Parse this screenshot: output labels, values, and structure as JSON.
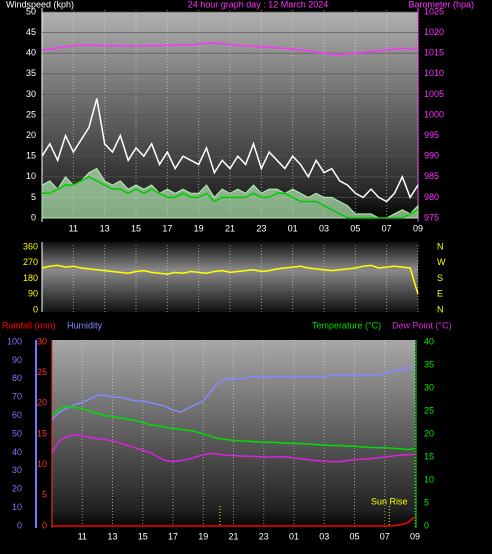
{
  "chart_data": [
    {
      "type": "line",
      "title": "24 hour graph day : 12 March 2024",
      "ylabel": "Windspeed (kph)",
      "y2label": "Barometer (hpa)",
      "x": [
        0,
        0.5,
        1,
        1.5,
        2,
        2.5,
        3,
        3.5,
        4,
        4.5,
        5,
        5.5,
        6,
        6.5,
        7,
        7.5,
        8,
        8.5,
        9,
        9.5,
        10,
        10.5,
        11,
        11.5,
        12,
        12.5,
        13,
        13.5,
        14,
        14.5,
        15,
        15.5,
        16,
        16.5,
        17,
        17.5,
        18,
        18.5,
        19,
        19.5,
        20,
        20.5,
        21,
        21.5,
        22,
        22.5,
        23,
        23.5,
        24
      ],
      "xlim": [
        0,
        24
      ],
      "xticks": [
        {
          "value": 2,
          "label": "11"
        },
        {
          "value": 4,
          "label": "13"
        },
        {
          "value": 6,
          "label": "15"
        },
        {
          "value": 8,
          "label": "17"
        },
        {
          "value": 10,
          "label": "19"
        },
        {
          "value": 12,
          "label": "21"
        },
        {
          "value": 14,
          "label": "23"
        },
        {
          "value": 16,
          "label": "01"
        },
        {
          "value": 18,
          "label": "03"
        },
        {
          "value": 20,
          "label": "05"
        },
        {
          "value": 22,
          "label": "07"
        },
        {
          "value": 24,
          "label": "09"
        }
      ],
      "ylim": [
        0,
        50
      ],
      "yticks": [
        0,
        5,
        10,
        15,
        20,
        25,
        30,
        35,
        40,
        45,
        50
      ],
      "y2lim": [
        975,
        1025
      ],
      "y2ticks": [
        975,
        980,
        985,
        990,
        995,
        1000,
        1005,
        1010,
        1015,
        1020,
        1025
      ],
      "axis_colors": {
        "y": "#ffffff",
        "y2": "#ff33ff"
      },
      "grid": "xy",
      "series": [
        {
          "color": "#ffffff",
          "style": "line",
          "values": [
            15,
            18,
            14,
            20,
            16,
            19,
            22,
            29,
            18,
            16,
            20,
            14,
            17,
            15,
            18,
            13,
            16,
            12,
            15,
            14,
            13,
            17,
            11,
            14,
            12,
            15,
            13,
            18,
            12,
            16,
            14,
            12,
            15,
            13,
            10,
            14,
            11,
            12,
            9,
            8,
            6,
            5,
            7,
            5,
            4,
            6,
            10,
            5,
            8
          ]
        },
        {
          "color": "#b8f0b8",
          "style": "area",
          "values": [
            8,
            9,
            7,
            10,
            8,
            9,
            11,
            12,
            9,
            8,
            9,
            7,
            8,
            7,
            8,
            6,
            7,
            6,
            7,
            6,
            6,
            8,
            5,
            7,
            6,
            7,
            6,
            8,
            6,
            7,
            7,
            6,
            7,
            6,
            5,
            6,
            5,
            5,
            4,
            3,
            1,
            1,
            1,
            0,
            0,
            1,
            2,
            1,
            3
          ]
        },
        {
          "color": "#00cc00",
          "style": "line",
          "values": [
            6,
            6,
            7,
            8,
            8,
            9,
            10,
            9,
            8,
            7,
            7,
            6,
            7,
            6,
            7,
            6,
            5,
            5,
            6,
            5,
            5,
            6,
            4,
            5,
            5,
            5,
            5,
            6,
            5,
            5,
            6,
            6,
            5,
            4,
            4,
            4,
            3,
            2,
            1,
            0,
            0,
            0,
            0,
            0,
            0,
            0,
            0,
            1,
            2
          ]
        },
        {
          "color": "#ff33ff",
          "style": "line",
          "axis": "y2",
          "values": [
            1015.8,
            1016.0,
            1016.3,
            1016.6,
            1016.8,
            1017.0,
            1017.0,
            1016.9,
            1016.8,
            1016.9,
            1016.8,
            1016.7,
            1016.8,
            1016.8,
            1016.9,
            1016.8,
            1016.9,
            1017.0,
            1017.1,
            1017.0,
            1017.2,
            1017.4,
            1017.5,
            1017.3,
            1017.1,
            1016.9,
            1016.8,
            1016.7,
            1016.5,
            1016.4,
            1016.3,
            1016.2,
            1016.0,
            1015.8,
            1015.6,
            1015.3,
            1015.0,
            1014.8,
            1014.7,
            1014.9,
            1015.0,
            1015.2,
            1015.4,
            1015.6,
            1015.8,
            1016.0,
            1016.2,
            1016.0,
            1016.3
          ]
        }
      ]
    },
    {
      "type": "line",
      "x": [
        0,
        0.5,
        1,
        1.5,
        2,
        2.5,
        3,
        3.5,
        4,
        4.5,
        5,
        5.5,
        6,
        6.5,
        7,
        7.5,
        8,
        8.5,
        9,
        9.5,
        10,
        10.5,
        11,
        11.5,
        12,
        12.5,
        13,
        13.5,
        14,
        14.5,
        15,
        15.5,
        16,
        16.5,
        17,
        17.5,
        18,
        18.5,
        19,
        19.5,
        20,
        20.5,
        21,
        21.5,
        22,
        22.5,
        23,
        23.5,
        24
      ],
      "xlim": [
        0,
        24
      ],
      "xticks": [
        2,
        4,
        6,
        8,
        10,
        12,
        14,
        16,
        18,
        20,
        22,
        24
      ],
      "ylim": [
        0,
        360
      ],
      "yticks": [
        0,
        90,
        180,
        270,
        360
      ],
      "y2lim": [
        0,
        360
      ],
      "y2ticks": [
        {
          "value": 0,
          "label": "N"
        },
        {
          "value": 90,
          "label": "E"
        },
        {
          "value": 180,
          "label": "S"
        },
        {
          "value": 270,
          "label": "W"
        },
        {
          "value": 360,
          "label": "N"
        }
      ],
      "axis_colors": {
        "y": "#ffff00",
        "y2": "#ffff00"
      },
      "grid": "x",
      "series": [
        {
          "color": "#ffff00",
          "style": "line",
          "values": [
            240,
            250,
            255,
            245,
            250,
            240,
            235,
            230,
            225,
            220,
            215,
            210,
            220,
            225,
            215,
            210,
            205,
            215,
            210,
            220,
            215,
            210,
            220,
            225,
            215,
            220,
            225,
            230,
            220,
            225,
            235,
            240,
            245,
            250,
            240,
            235,
            230,
            225,
            230,
            235,
            240,
            250,
            255,
            240,
            245,
            250,
            245,
            240,
            90
          ]
        }
      ]
    },
    {
      "type": "line",
      "x": [
        0,
        0.5,
        1,
        1.5,
        2,
        2.5,
        3,
        3.5,
        4,
        4.5,
        5,
        5.5,
        6,
        6.5,
        7,
        7.5,
        8,
        8.5,
        9,
        9.5,
        10,
        10.5,
        11,
        11.5,
        12,
        12.5,
        13,
        13.5,
        14,
        14.5,
        15,
        15.5,
        16,
        16.5,
        17,
        17.5,
        18,
        18.5,
        19,
        19.5,
        20,
        20.5,
        21,
        21.5,
        22,
        22.5,
        23,
        23.5,
        24
      ],
      "xlim": [
        0,
        24
      ],
      "xticks": [
        {
          "value": 2,
          "label": "11"
        },
        {
          "value": 4,
          "label": "13"
        },
        {
          "value": 6,
          "label": "15"
        },
        {
          "value": 8,
          "label": "17"
        },
        {
          "value": 10,
          "label": "19"
        },
        {
          "value": 12,
          "label": "21"
        },
        {
          "value": 14,
          "label": "23"
        },
        {
          "value": 16,
          "label": "01"
        },
        {
          "value": 18,
          "label": "03"
        },
        {
          "value": 20,
          "label": "05"
        },
        {
          "value": 22,
          "label": "07"
        },
        {
          "value": 24,
          "label": "09"
        }
      ],
      "ylim": [
        0,
        30
      ],
      "yticks": [
        0,
        5,
        10,
        15,
        20,
        25,
        30
      ],
      "y3lim": [
        0,
        100
      ],
      "y3ticks": [
        0,
        10,
        20,
        30,
        40,
        50,
        60,
        70,
        80,
        90,
        100
      ],
      "y2lim": [
        0,
        40
      ],
      "y2ticks": [
        0,
        5,
        10,
        15,
        20,
        25,
        30,
        35,
        40
      ],
      "axis_colors": {
        "y": "#ff3333",
        "y2": "#00ee00",
        "y3": "#7777ff"
      },
      "grid": "x",
      "vlines": [
        {
          "x": 11.1
        },
        {
          "x": 22.3,
          "text": "Sun Rise"
        }
      ],
      "series": [
        {
          "name": "Rainfall (mm)",
          "color": "#ff0000",
          "style": "line",
          "axis": "y",
          "values": [
            0,
            0,
            0,
            0,
            0,
            0,
            0,
            0,
            0,
            0,
            0,
            0,
            0,
            0,
            0,
            0,
            0,
            0,
            0,
            0,
            0,
            0,
            0,
            0,
            0,
            0,
            0,
            0,
            0,
            0,
            0,
            0,
            0,
            0,
            0,
            0,
            0,
            0,
            0,
            0,
            0,
            0,
            0,
            0,
            0,
            0,
            0.2,
            0.5,
            1.5
          ]
        },
        {
          "name": "Humidity",
          "color": "#8888ff",
          "style": "line",
          "axis": "y3",
          "values": [
            58,
            62,
            64,
            66,
            67,
            69,
            71,
            71,
            70,
            70,
            69,
            68,
            68,
            67,
            66,
            65,
            63,
            62,
            64,
            66,
            68,
            73,
            78,
            80,
            80,
            80,
            81,
            81,
            81,
            81,
            81,
            81,
            81,
            81,
            81,
            81,
            81,
            82,
            82,
            82,
            82,
            82,
            82,
            82,
            83,
            84,
            85,
            86,
            86
          ]
        },
        {
          "name": "Temperature (°C)",
          "color": "#00dd00",
          "style": "line",
          "axis": "y2",
          "values": [
            24,
            25.5,
            26,
            25.8,
            25.5,
            25,
            24.5,
            24,
            23.8,
            23.5,
            23.2,
            23,
            22.5,
            22,
            21.8,
            21.5,
            21.2,
            21,
            20.8,
            20.5,
            20,
            19.5,
            19,
            18.8,
            18.6,
            18.5,
            18.4,
            18.3,
            18.2,
            18.2,
            18.1,
            18,
            18,
            17.9,
            17.8,
            17.7,
            17.6,
            17.5,
            17.5,
            17.4,
            17.3,
            17.2,
            17.1,
            17,
            17,
            16.9,
            16.8,
            16.6,
            16.8
          ]
        },
        {
          "name": "Dew Point (°C)",
          "color": "#dd22dd",
          "style": "line",
          "axis": "y2",
          "values": [
            16,
            18.5,
            19.5,
            19.8,
            19.6,
            19.3,
            19,
            18.8,
            18.5,
            18,
            17.5,
            17,
            16.5,
            16,
            15,
            14.2,
            14,
            14.2,
            14.5,
            15,
            15.5,
            15.8,
            15.6,
            15.4,
            15.3,
            15.2,
            15.2,
            15.1,
            15,
            15,
            15,
            15,
            14.8,
            14.6,
            14.4,
            14.2,
            14.1,
            14,
            14,
            14.2,
            14.4,
            14.5,
            14.6,
            14.8,
            15,
            15.2,
            15.4,
            15.5,
            15.6
          ]
        }
      ]
    }
  ]
}
